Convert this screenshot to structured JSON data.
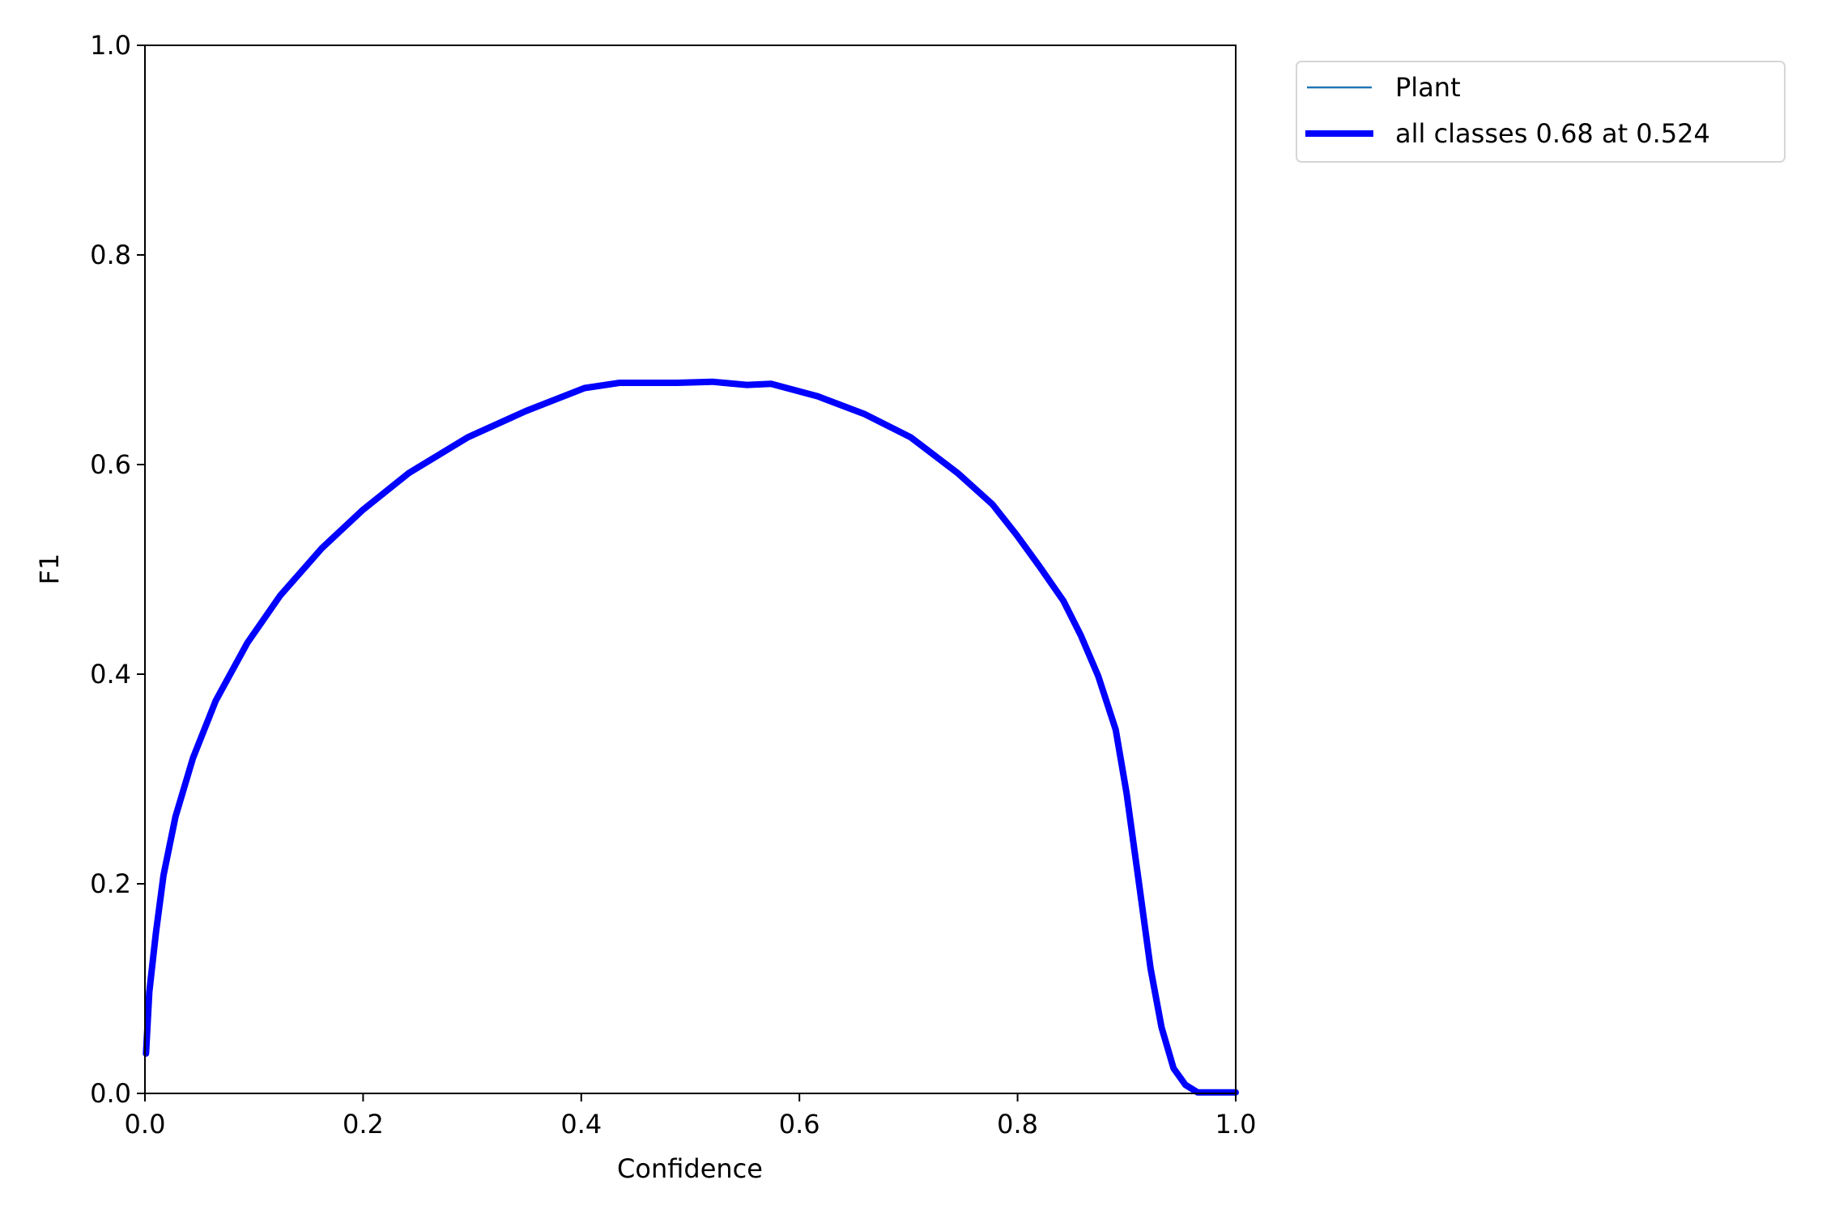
{
  "chart_data": {
    "type": "line",
    "title": "",
    "xlabel": "Confidence",
    "ylabel": "F1",
    "xlim": [
      0,
      1
    ],
    "ylim": [
      0,
      1
    ],
    "xticks": [
      "0.0",
      "0.2",
      "0.4",
      "0.6",
      "0.8",
      "1.0"
    ],
    "yticks": [
      "0.0",
      "0.2",
      "0.4",
      "0.6",
      "0.8",
      "1.0"
    ],
    "grid": false,
    "legend_position": "outside-top-right",
    "series": [
      {
        "name": "Plant",
        "color": "#1f77b4",
        "style": "thin",
        "x": [
          0.001,
          0.004,
          0.01,
          0.017,
          0.028,
          0.044,
          0.065,
          0.094,
          0.124,
          0.162,
          0.2,
          0.242,
          0.296,
          0.349,
          0.403,
          0.435,
          0.488,
          0.52,
          0.552,
          0.574,
          0.617,
          0.66,
          0.702,
          0.745,
          0.777,
          0.799,
          0.82,
          0.842,
          0.858,
          0.874,
          0.89,
          0.9,
          0.911,
          0.922,
          0.932,
          0.943,
          0.954,
          0.965,
          1.0
        ],
        "y": [
          0.038,
          0.097,
          0.153,
          0.208,
          0.264,
          0.32,
          0.375,
          0.43,
          0.475,
          0.52,
          0.557,
          0.592,
          0.626,
          0.651,
          0.673,
          0.678,
          0.678,
          0.679,
          0.676,
          0.677,
          0.665,
          0.648,
          0.626,
          0.592,
          0.562,
          0.533,
          0.503,
          0.47,
          0.437,
          0.398,
          0.347,
          0.286,
          0.203,
          0.119,
          0.063,
          0.024,
          0.008,
          0.001,
          0.001
        ]
      },
      {
        "name": "all classes 0.68 at 0.524",
        "color": "#0000ff",
        "style": "thick",
        "x": [
          0.001,
          0.004,
          0.01,
          0.017,
          0.028,
          0.044,
          0.065,
          0.094,
          0.124,
          0.162,
          0.2,
          0.242,
          0.296,
          0.349,
          0.403,
          0.435,
          0.488,
          0.52,
          0.552,
          0.574,
          0.617,
          0.66,
          0.702,
          0.745,
          0.777,
          0.799,
          0.82,
          0.842,
          0.858,
          0.874,
          0.89,
          0.9,
          0.911,
          0.922,
          0.932,
          0.943,
          0.954,
          0.965,
          1.0
        ],
        "y": [
          0.038,
          0.097,
          0.153,
          0.208,
          0.264,
          0.32,
          0.375,
          0.43,
          0.475,
          0.52,
          0.557,
          0.592,
          0.626,
          0.651,
          0.673,
          0.678,
          0.678,
          0.679,
          0.676,
          0.677,
          0.665,
          0.648,
          0.626,
          0.592,
          0.562,
          0.533,
          0.503,
          0.47,
          0.437,
          0.398,
          0.347,
          0.286,
          0.203,
          0.119,
          0.063,
          0.024,
          0.008,
          0.001,
          0.001
        ]
      }
    ]
  }
}
